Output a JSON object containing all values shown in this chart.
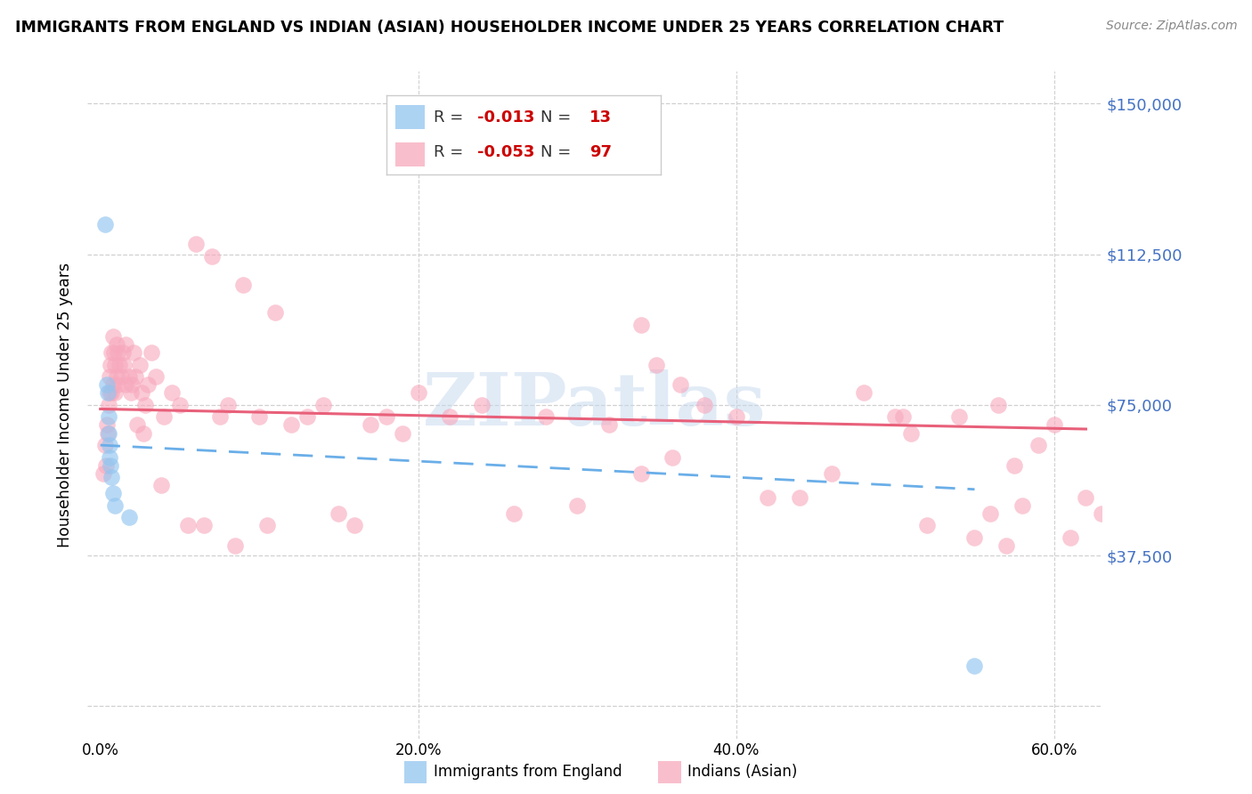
{
  "title": "IMMIGRANTS FROM ENGLAND VS INDIAN (ASIAN) HOUSEHOLDER INCOME UNDER 25 YEARS CORRELATION CHART",
  "source": "Source: ZipAtlas.com",
  "ylabel": "Householder Income Under 25 years",
  "xlim": [
    -0.8,
    63
  ],
  "ylim": [
    -8000,
    158000
  ],
  "yticks": [
    0,
    37500,
    75000,
    112500,
    150000
  ],
  "right_ytick_labels": [
    "$150,000",
    "$112,500",
    "$75,000",
    "$37,500"
  ],
  "right_ytick_vals": [
    150000,
    112500,
    75000,
    37500
  ],
  "watermark": "ZIPatlas",
  "legend_R1_val": "-0.013",
  "legend_N1_val": "13",
  "legend_R2_val": "-0.053",
  "legend_N2_val": "97",
  "label1": "Immigrants from England",
  "label2": "Indians (Asian)",
  "color1": "#92c5f0",
  "color2": "#f7a8bc",
  "trendline1_color": "#6aaee8",
  "trendline2_color": "#e8607a",
  "england_x": [
    0.3,
    0.4,
    0.45,
    0.5,
    0.5,
    0.55,
    0.6,
    0.65,
    0.7,
    0.8,
    0.9,
    1.8,
    55.0
  ],
  "england_y": [
    120000,
    80000,
    78000,
    72000,
    68000,
    65000,
    62000,
    60000,
    57000,
    53000,
    50000,
    47000,
    10000
  ],
  "indian_x": [
    0.2,
    0.3,
    0.35,
    0.4,
    0.45,
    0.5,
    0.55,
    0.6,
    0.65,
    0.7,
    0.7,
    0.8,
    0.8,
    0.85,
    0.9,
    0.9,
    1.0,
    1.0,
    1.1,
    1.1,
    1.2,
    1.3,
    1.4,
    1.5,
    1.6,
    1.6,
    1.8,
    1.9,
    2.0,
    2.1,
    2.2,
    2.5,
    2.6,
    2.8,
    3.0,
    3.2,
    3.5,
    4.0,
    4.5,
    5.0,
    5.5,
    6.0,
    7.0,
    7.5,
    8.0,
    9.0,
    10.0,
    11.0,
    12.0,
    13.0,
    14.0,
    15.0,
    17.0,
    18.0,
    19.0,
    20.0,
    22.0,
    24.0,
    26.0,
    28.0,
    30.0,
    32.0,
    34.0,
    36.0,
    38.0,
    40.0,
    42.0,
    44.0,
    46.0,
    48.0,
    50.0,
    52.0,
    54.0,
    56.0,
    57.0,
    58.0,
    59.0,
    60.0,
    61.0,
    62.0,
    63.0,
    64.0,
    34.0,
    35.0,
    36.5,
    50.5,
    51.0,
    55.0,
    56.5,
    57.5,
    2.3,
    2.7,
    3.8,
    6.5,
    8.5,
    10.5,
    16.0
  ],
  "indian_y": [
    58000,
    65000,
    60000,
    70000,
    68000,
    75000,
    78000,
    82000,
    85000,
    88000,
    78000,
    92000,
    80000,
    88000,
    85000,
    78000,
    90000,
    82000,
    88000,
    80000,
    85000,
    82000,
    88000,
    85000,
    80000,
    90000,
    82000,
    78000,
    80000,
    88000,
    82000,
    85000,
    78000,
    75000,
    80000,
    88000,
    82000,
    72000,
    78000,
    75000,
    45000,
    115000,
    112000,
    72000,
    75000,
    105000,
    72000,
    98000,
    70000,
    72000,
    75000,
    48000,
    70000,
    72000,
    68000,
    78000,
    72000,
    75000,
    48000,
    72000,
    50000,
    70000,
    58000,
    62000,
    75000,
    72000,
    52000,
    52000,
    58000,
    78000,
    72000,
    45000,
    72000,
    48000,
    40000,
    50000,
    65000,
    70000,
    42000,
    52000,
    48000,
    65000,
    95000,
    85000,
    80000,
    72000,
    68000,
    42000,
    75000,
    60000,
    70000,
    68000,
    55000,
    45000,
    40000,
    45000,
    45000
  ]
}
